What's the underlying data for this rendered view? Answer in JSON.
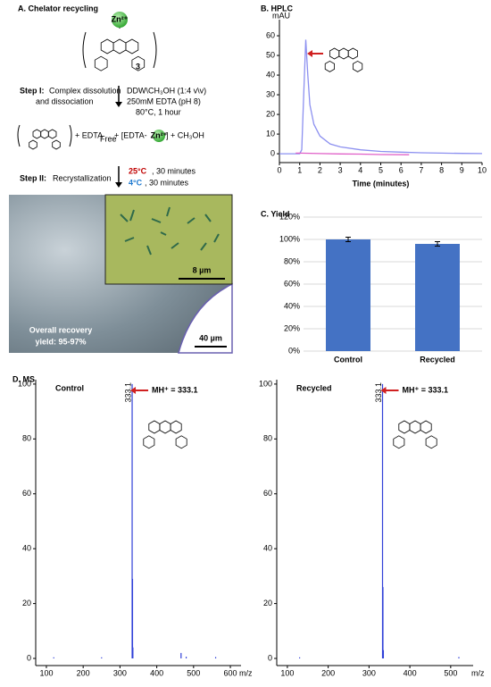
{
  "panel_a": {
    "title": "A. Chelator recycling",
    "zn": "Zn²⁺",
    "multiplier": "3",
    "step1": {
      "label": "Step I:",
      "text": [
        "Complex dissolution",
        "and dissociation"
      ],
      "conditions": [
        "DDW\\CH₃OH (1:4 v\\v)",
        "250mM EDTA (pH 8)",
        "80°C, 1 hour"
      ]
    },
    "equation": {
      "edta": "+ EDTA",
      "free": "Free",
      "complex_open": "+ [EDTA-",
      "zn": "Zn²⁺",
      "complex_close": "] + CH₃OH"
    },
    "step2": {
      "label": "Step II:",
      "text": "Recrystallization",
      "temp1": "25°C",
      "time1": ", 30 minutes",
      "temp2": "4°C",
      "time2": ", 30 minutes"
    },
    "image": {
      "inset_scale": "8 µm",
      "scale": "40 µm",
      "recovery": [
        "Overall recovery",
        "yield: 95-97%"
      ]
    }
  },
  "chart_data": [
    {
      "type": "line",
      "title": "B. HPLC",
      "ylabel": "mAU",
      "xlabel": "Time (minutes)",
      "xlim": [
        0,
        10
      ],
      "ylim": [
        -4.5,
        68.2
      ],
      "xticks": [
        0,
        1,
        2,
        3,
        4,
        5,
        6,
        7,
        8,
        9,
        10
      ],
      "yticks": [
        0,
        10,
        20,
        30,
        40,
        50,
        60
      ],
      "series": [
        {
          "color": "#8c90f0",
          "x": [
            0,
            0.5,
            1.0,
            1.1,
            1.2,
            1.3,
            1.4,
            1.5,
            1.7,
            2,
            2.5,
            3,
            4,
            5,
            6,
            7,
            8,
            9,
            10
          ],
          "values": [
            0,
            0,
            0,
            2,
            30,
            58,
            40,
            25,
            15,
            9,
            5,
            3.5,
            2,
            1.2,
            0.8,
            0.5,
            0.3,
            0.2,
            0.1
          ]
        },
        {
          "color": "#e060c8",
          "x": [
            0.8,
            1,
            2,
            3,
            4,
            5,
            6.4
          ],
          "values": [
            0.3,
            0.3,
            0.1,
            -0.1,
            -0.2,
            -0.4,
            -0.5
          ]
        }
      ]
    },
    {
      "type": "bar",
      "title": "C. Yield",
      "categories": [
        "Control",
        "Recycled"
      ],
      "values": [
        100,
        96
      ],
      "errors": [
        2,
        2
      ],
      "color": "#4472c4",
      "ylim": [
        0,
        120
      ],
      "grid": true,
      "yticks": [
        {
          "value": 0,
          "label": "0%"
        },
        {
          "value": 20,
          "label": "20%"
        },
        {
          "value": 40,
          "label": "40%"
        },
        {
          "value": 60,
          "label": "60%"
        },
        {
          "value": 80,
          "label": "80%"
        },
        {
          "value": 100,
          "label": "100%"
        },
        {
          "value": 120,
          "label": "120%"
        }
      ]
    },
    {
      "type": "stem",
      "title": "D. MS",
      "label": "Control",
      "annotation": "MH⁺ = 333.1",
      "peak_label": "333.1",
      "xlabel": "m/z",
      "color": "#3040d8",
      "xlim": [
        71,
        629
      ],
      "ylim": [
        -2.6,
        101.6
      ],
      "xticks": [
        100,
        200,
        300,
        400,
        500,
        600
      ],
      "yticks": [
        0,
        20,
        40,
        60,
        80,
        100
      ],
      "x": [
        120,
        250,
        333.1,
        334.1,
        335.1,
        466,
        480,
        560
      ],
      "values": [
        0.4,
        0.4,
        100,
        29,
        4,
        2,
        0.6,
        0.5
      ]
    },
    {
      "type": "stem",
      "label": "Recycled",
      "annotation": "MH⁺ = 333.1",
      "peak_label": "333.1",
      "xlabel": "m/z",
      "color": "#3040d8",
      "xlim": [
        74,
        555
      ],
      "ylim": [
        -2.6,
        101.6
      ],
      "xticks": [
        100,
        200,
        300,
        400,
        500
      ],
      "yticks": [
        0,
        20,
        40,
        60,
        80,
        100
      ],
      "x": [
        130,
        333.1,
        334.1,
        335.1,
        520
      ],
      "values": [
        0.4,
        100,
        26,
        3,
        0.5
      ]
    }
  ]
}
